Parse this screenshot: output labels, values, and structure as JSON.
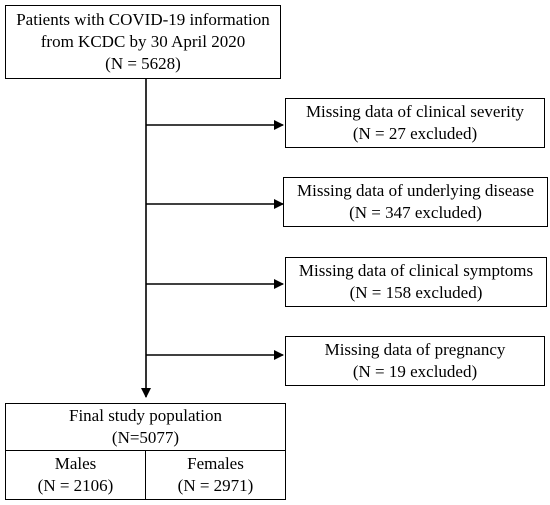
{
  "source_box": {
    "line1": "Patients with COVID-19 information",
    "line2": "from KCDC by 30 April 2020",
    "line3": "(N = 5628)"
  },
  "exclusions": [
    {
      "title": "Missing data of clinical severity",
      "count": "(N = 27 excluded)"
    },
    {
      "title": "Missing data of underlying disease",
      "count": "(N = 347 excluded)"
    },
    {
      "title": "Missing data of clinical symptoms",
      "count": "(N = 158 excluded)"
    },
    {
      "title": "Missing data of pregnancy",
      "count": "(N = 19 excluded)"
    }
  ],
  "final_box": {
    "title": "Final study population",
    "count": "(N=5077)",
    "males_label": "Males",
    "males_count": "(N = 2106)",
    "females_label": "Females",
    "females_count": "(N = 2971)"
  }
}
